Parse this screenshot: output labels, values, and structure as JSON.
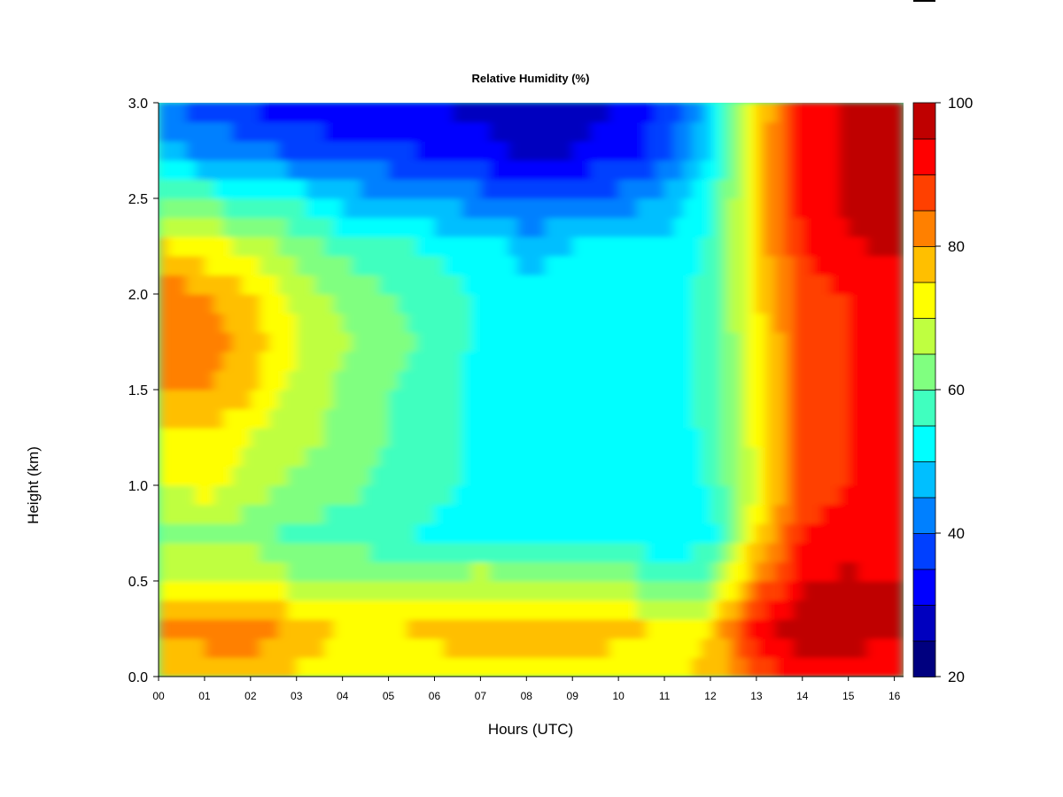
{
  "chart_data": {
    "type": "heatmap",
    "title": "Relative Humidity (%)",
    "xlabel": "Hours (UTC)",
    "ylabel": "Height (km)",
    "xlim": [
      0,
      16.2
    ],
    "ylim": [
      0,
      3.0
    ],
    "x_ticks": [
      0,
      1,
      2,
      3,
      4,
      5,
      6,
      7,
      8,
      9,
      10,
      11,
      12,
      13,
      14,
      15,
      16
    ],
    "x_tick_labels": [
      "00",
      "01",
      "02",
      "03",
      "04",
      "05",
      "06",
      "07",
      "08",
      "09",
      "10",
      "11",
      "12",
      "13",
      "14",
      "15",
      "16"
    ],
    "y_ticks": [
      0,
      0.5,
      1.0,
      1.5,
      2.0,
      2.5,
      3.0
    ],
    "y_tick_labels": [
      "0.0",
      "0.5",
      "1.0",
      "1.5",
      "2.0",
      "2.5",
      "3.0"
    ],
    "colorbar": {
      "range": [
        20,
        100
      ],
      "ticks": [
        20,
        40,
        60,
        80,
        100
      ],
      "tick_labels": [
        "20",
        "40",
        "60",
        "80",
        "100"
      ],
      "levels": [
        20,
        25,
        30,
        35,
        40,
        45,
        50,
        55,
        60,
        65,
        70,
        75,
        80,
        85,
        90,
        95,
        100
      ],
      "colors": [
        "#00007f",
        "#0000bf",
        "#0000ff",
        "#0040ff",
        "#0080ff",
        "#00bfff",
        "#00ffff",
        "#40ffbf",
        "#80ff80",
        "#bfff40",
        "#ffff00",
        "#ffbf00",
        "#ff8000",
        "#ff4000",
        "#ff0000",
        "#bf0000",
        "#7f0000"
      ]
    },
    "x_grid_hours": [
      0,
      1,
      2,
      3,
      4,
      5,
      6,
      7,
      8,
      9,
      10,
      11,
      12,
      13,
      14,
      15,
      16
    ],
    "y_grid_km": [
      0.0,
      0.25,
      0.5,
      0.75,
      1.0,
      1.25,
      1.5,
      1.75,
      2.0,
      2.25,
      2.5,
      2.75,
      3.0
    ],
    "z_values": [
      [
        78,
        80,
        76,
        74,
        74,
        72,
        73,
        73,
        74,
        74,
        73,
        74,
        76,
        86,
        94,
        92,
        88
      ],
      [
        80,
        80,
        84,
        78,
        74,
        74,
        76,
        78,
        78,
        77,
        76,
        74,
        75,
        92,
        98,
        98,
        98
      ],
      [
        70,
        70,
        72,
        66,
        66,
        64,
        66,
        68,
        66,
        64,
        64,
        60,
        62,
        82,
        95,
        96,
        95
      ],
      [
        62,
        64,
        62,
        58,
        58,
        56,
        54,
        54,
        54,
        52,
        52,
        50,
        52,
        74,
        90,
        92,
        90
      ],
      [
        70,
        72,
        68,
        64,
        62,
        58,
        56,
        54,
        54,
        52,
        52,
        52,
        56,
        70,
        88,
        90,
        90
      ],
      [
        74,
        74,
        70,
        66,
        64,
        60,
        56,
        54,
        52,
        52,
        52,
        52,
        56,
        72,
        88,
        90,
        90
      ],
      [
        80,
        80,
        76,
        68,
        64,
        60,
        56,
        54,
        52,
        52,
        52,
        52,
        58,
        72,
        88,
        90,
        92
      ],
      [
        84,
        82,
        78,
        70,
        66,
        62,
        58,
        54,
        52,
        52,
        52,
        52,
        58,
        72,
        88,
        90,
        92
      ],
      [
        84,
        80,
        76,
        68,
        64,
        60,
        58,
        54,
        52,
        52,
        52,
        52,
        58,
        74,
        88,
        90,
        92
      ],
      [
        76,
        72,
        68,
        62,
        58,
        56,
        54,
        52,
        48,
        50,
        50,
        50,
        56,
        76,
        90,
        94,
        96
      ],
      [
        60,
        58,
        56,
        54,
        48,
        46,
        44,
        42,
        38,
        40,
        42,
        46,
        54,
        76,
        92,
        96,
        98
      ],
      [
        46,
        44,
        42,
        38,
        36,
        36,
        34,
        32,
        28,
        30,
        32,
        38,
        50,
        76,
        92,
        96,
        99
      ],
      [
        40,
        38,
        34,
        32,
        32,
        32,
        30,
        28,
        26,
        28,
        30,
        36,
        48,
        74,
        92,
        96,
        99
      ]
    ]
  }
}
